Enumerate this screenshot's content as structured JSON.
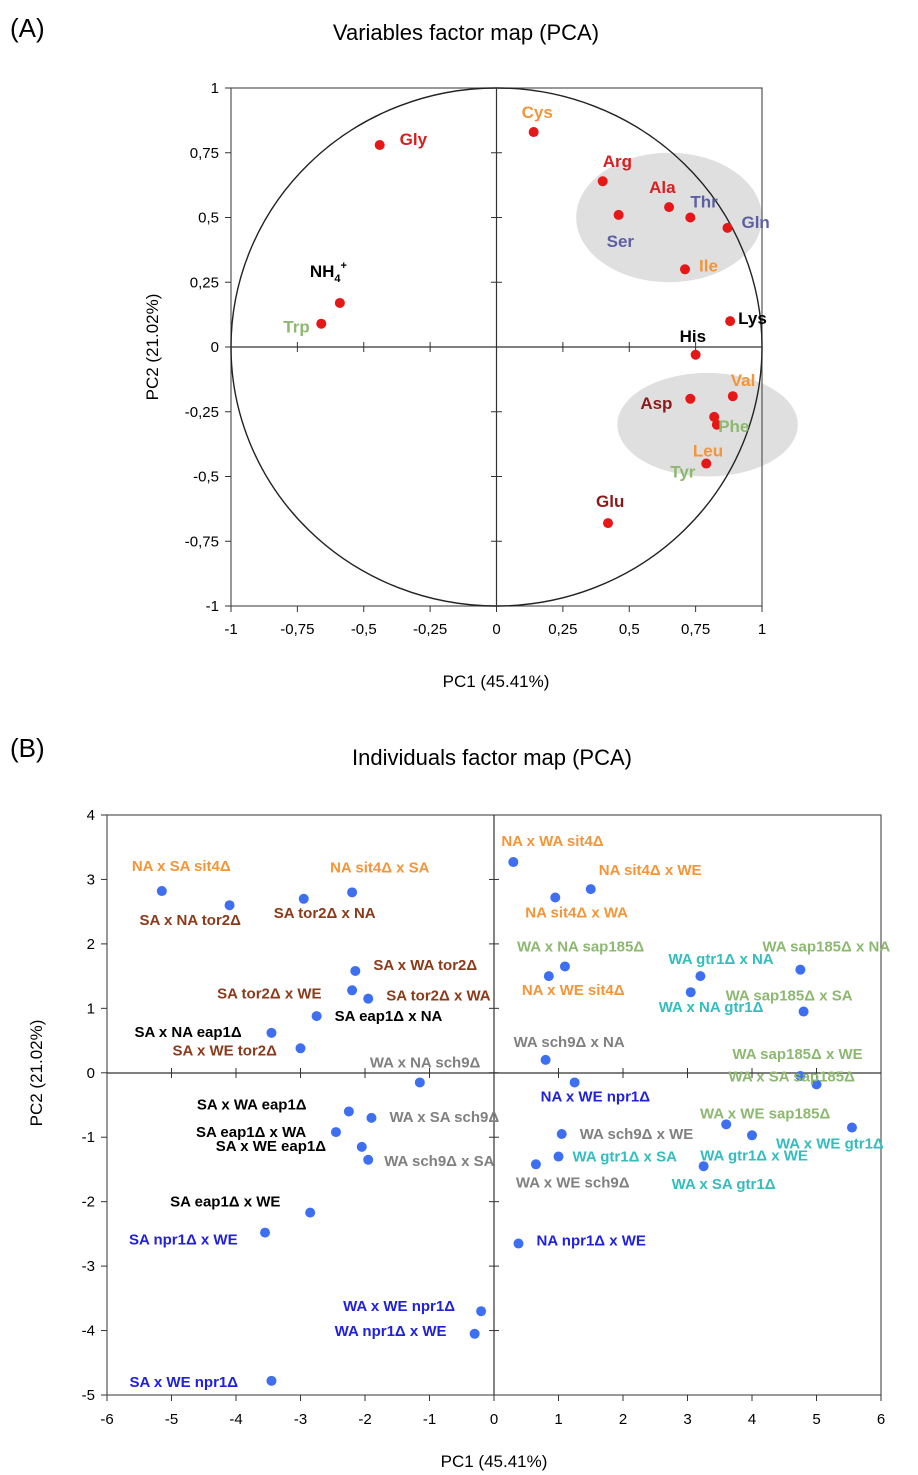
{
  "chart_data": [
    {
      "type": "scatter",
      "panel_label": "(A)",
      "title": "Variables factor map (PCA)",
      "xlabel": "PC1 (45.41%)",
      "ylabel": "PC2 (21.02%)",
      "xlim": [
        -1,
        1
      ],
      "ylim": [
        -1,
        1
      ],
      "xticks": [
        "-1",
        "-0,75",
        "-0,5",
        "-0,25",
        "0",
        "0,25",
        "0,5",
        "0,75",
        "1"
      ],
      "yticks": [
        "1",
        "0,75",
        "0,5",
        "0,25",
        "0",
        "-0,25",
        "-0,5",
        "-0,75",
        "-1"
      ],
      "unit_circle": true,
      "grid": false,
      "highlight_groups": [
        {
          "center": [
            0.65,
            0.5
          ],
          "radii": [
            0.35,
            0.25
          ]
        },
        {
          "center": [
            0.795,
            -0.3
          ],
          "radii": [
            0.34,
            0.2
          ]
        }
      ],
      "points": [
        {
          "label": "Gly",
          "x": -0.44,
          "y": 0.78,
          "color": "#d81e1e"
        },
        {
          "label": "Cys",
          "x": 0.14,
          "y": 0.83,
          "color": "#f39538"
        },
        {
          "label": "Arg",
          "x": 0.4,
          "y": 0.64,
          "color": "#d81e1e"
        },
        {
          "label": "Ala",
          "x": 0.65,
          "y": 0.54,
          "color": "#d81e1e"
        },
        {
          "label": "Thr",
          "x": 0.73,
          "y": 0.5,
          "color": "#5d5fa0"
        },
        {
          "label": "Gln",
          "x": 0.87,
          "y": 0.46,
          "color": "#5d5fa0"
        },
        {
          "label": "Ser",
          "x": 0.46,
          "y": 0.51,
          "color": "#5d5fa0"
        },
        {
          "label": "Ile",
          "x": 0.71,
          "y": 0.3,
          "color": "#f39538"
        },
        {
          "label": "NH4+",
          "x": -0.59,
          "y": 0.17,
          "color": "#000000"
        },
        {
          "label": "Trp",
          "x": -0.66,
          "y": 0.09,
          "color": "#8db870"
        },
        {
          "label": "Lys",
          "x": 0.88,
          "y": 0.1,
          "color": "#000000"
        },
        {
          "label": "His",
          "x": 0.75,
          "y": -0.03,
          "color": "#000000"
        },
        {
          "label": "Val",
          "x": 0.89,
          "y": -0.19,
          "color": "#f39538"
        },
        {
          "label": "Asp",
          "x": 0.73,
          "y": -0.2,
          "color": "#8b1a1a"
        },
        {
          "label": "Phe",
          "x": 0.82,
          "y": -0.27,
          "color": "#8db870"
        },
        {
          "label": "Leu",
          "x": 0.83,
          "y": -0.3,
          "color": "#f39538"
        },
        {
          "label": "Tyr",
          "x": 0.79,
          "y": -0.45,
          "color": "#8db870"
        },
        {
          "label": "Glu",
          "x": 0.42,
          "y": -0.68,
          "color": "#8b1a1a"
        }
      ]
    },
    {
      "type": "scatter",
      "panel_label": "(B)",
      "title": "Individuals factor map (PCA)",
      "xlabel": "PC1 (45.41%)",
      "ylabel": "PC2 (21.02%)",
      "xlim": [
        -6,
        6
      ],
      "ylim": [
        -5,
        4
      ],
      "xticks": [
        "-6",
        "-5",
        "-4",
        "-3",
        "-2",
        "-1",
        "0",
        "1",
        "2",
        "3",
        "4",
        "5",
        "6"
      ],
      "yticks": [
        "4",
        "3",
        "2",
        "1",
        "0",
        "-1",
        "-2",
        "-3",
        "-4",
        "-5"
      ],
      "grid": false,
      "points": [
        {
          "label": "NA x SA sit4Δ",
          "x": -5.15,
          "y": 2.82,
          "color": "#f39538"
        },
        {
          "label": "SA x NA tor2Δ",
          "x": -4.1,
          "y": 2.6,
          "color": "#8b3a1a"
        },
        {
          "label": "SA tor2Δ x NA",
          "x": -2.95,
          "y": 2.7,
          "color": "#8b3a1a"
        },
        {
          "label": "NA sit4Δ x SA",
          "x": -2.2,
          "y": 2.8,
          "color": "#f39538"
        },
        {
          "label": "NA x WA sit4Δ",
          "x": 0.3,
          "y": 3.27,
          "color": "#f39538"
        },
        {
          "label": "NA sit4Δ x WE",
          "x": 1.5,
          "y": 2.85,
          "color": "#f39538"
        },
        {
          "label": "NA sit4Δ x WA",
          "x": 0.95,
          "y": 2.72,
          "color": "#f39538"
        },
        {
          "label": "SA x WA tor2Δ",
          "x": -2.15,
          "y": 1.58,
          "color": "#8b3a1a"
        },
        {
          "label": "SA tor2Δ x WE",
          "x": -2.2,
          "y": 1.28,
          "color": "#8b3a1a"
        },
        {
          "label": "SA tor2Δ x WA",
          "x": -1.95,
          "y": 1.15,
          "color": "#8b3a1a"
        },
        {
          "label": "SA eap1Δ x NA",
          "x": -2.75,
          "y": 0.88,
          "color": "#000000"
        },
        {
          "label": "SA x NA eap1Δ",
          "x": -3.45,
          "y": 0.62,
          "color": "#000000"
        },
        {
          "label": "SA x WE tor2Δ",
          "x": -3.0,
          "y": 0.38,
          "color": "#8b3a1a"
        },
        {
          "label": "WA x NA sap185Δ",
          "x": 1.1,
          "y": 1.65,
          "color": "#8db870"
        },
        {
          "label": "NA x WE sit4Δ",
          "x": 0.85,
          "y": 1.5,
          "color": "#f39538"
        },
        {
          "label": "WA gtr1Δ x NA",
          "x": 3.2,
          "y": 1.5,
          "color": "#33bdbd"
        },
        {
          "label": "WA x NA gtr1Δ",
          "x": 3.05,
          "y": 1.25,
          "color": "#33bdbd"
        },
        {
          "label": "WA sap185Δ x NA",
          "x": 4.75,
          "y": 1.6,
          "color": "#8db870"
        },
        {
          "label": "WA sap185Δ x SA",
          "x": 4.8,
          "y": 0.95,
          "color": "#8db870"
        },
        {
          "label": "WA x NA sch9Δ",
          "x": -1.15,
          "y": -0.15,
          "color": "#808080"
        },
        {
          "label": "WA sch9Δ x NA",
          "x": 0.8,
          "y": 0.2,
          "color": "#808080"
        },
        {
          "label": "NA x WE npr1Δ",
          "x": 1.25,
          "y": -0.15,
          "color": "#2020e0"
        },
        {
          "label": "WA sap185Δ x WE",
          "x": 4.75,
          "y": -0.05,
          "color": "#8db870"
        },
        {
          "label": "WA x SA sap185Δ",
          "x": 5.0,
          "y": -0.18,
          "color": "#8db870"
        },
        {
          "label": "WA x WE sap185Δ",
          "x": 4.0,
          "y": -0.97,
          "color": "#8db870"
        },
        {
          "label": "WA x WE gtr1Δ",
          "x": 5.55,
          "y": -0.85,
          "color": "#33bdbd"
        },
        {
          "label": "WA gtr1Δ x WE",
          "x": 3.6,
          "y": -0.8,
          "color": "#33bdbd"
        },
        {
          "label": "WA x SA gtr1Δ",
          "x": 3.25,
          "y": -1.45,
          "color": "#33bdbd"
        },
        {
          "label": "WA sch9Δ x WE",
          "x": 1.05,
          "y": -0.95,
          "color": "#808080"
        },
        {
          "label": "WA gtr1Δ x SA",
          "x": 1.0,
          "y": -1.3,
          "color": "#33bdbd"
        },
        {
          "label": "WA x WE sch9Δ",
          "x": 0.65,
          "y": -1.42,
          "color": "#808080"
        },
        {
          "label": "WA x SA sch9Δ",
          "x": -1.9,
          "y": -0.7,
          "color": "#808080"
        },
        {
          "label": "SA x WA eap1Δ",
          "x": -2.25,
          "y": -0.6,
          "color": "#000000"
        },
        {
          "label": "SA eap1Δ x WA",
          "x": -2.45,
          "y": -0.92,
          "color": "#000000"
        },
        {
          "label": "SA x WE eap1Δ",
          "x": -2.05,
          "y": -1.15,
          "color": "#000000"
        },
        {
          "label": "WA sch9Δ x SA",
          "x": -1.95,
          "y": -1.35,
          "color": "#808080"
        },
        {
          "label": "SA eap1Δ x WE",
          "x": -2.85,
          "y": -2.17,
          "color": "#000000"
        },
        {
          "label": "SA npr1Δ x WE",
          "x": -3.55,
          "y": -2.48,
          "color": "#2020e0"
        },
        {
          "label": "NA npr1Δ x WE",
          "x": 0.38,
          "y": -2.65,
          "color": "#2020e0"
        },
        {
          "label": "WA x WE npr1Δ",
          "x": -0.2,
          "y": -3.7,
          "color": "#2020e0"
        },
        {
          "label": "WA npr1Δ x WE",
          "x": -0.3,
          "y": -4.05,
          "color": "#2020e0"
        },
        {
          "label": "SA x WE npr1Δ",
          "x": -3.45,
          "y": -4.78,
          "color": "#2020e0"
        }
      ]
    }
  ]
}
